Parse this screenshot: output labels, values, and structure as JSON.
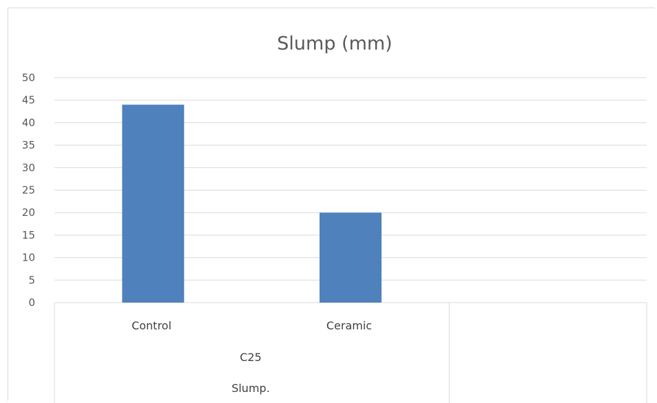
{
  "chart_data": {
    "type": "bar",
    "title": "Slump (mm)",
    "categories": [
      "Control",
      "Ceramic"
    ],
    "series": [
      {
        "values": [
          44,
          20
        ],
        "color": "#4f81bd"
      }
    ],
    "group_labels": [
      "C25",
      "Slump."
    ],
    "ylim": [
      0,
      50
    ],
    "yticks": [
      "0",
      "5",
      "10",
      "15",
      "20",
      "25",
      "30",
      "35",
      "40",
      "45",
      "50"
    ],
    "xlabel": "",
    "ylabel": "",
    "grid": true,
    "legend": "none"
  }
}
